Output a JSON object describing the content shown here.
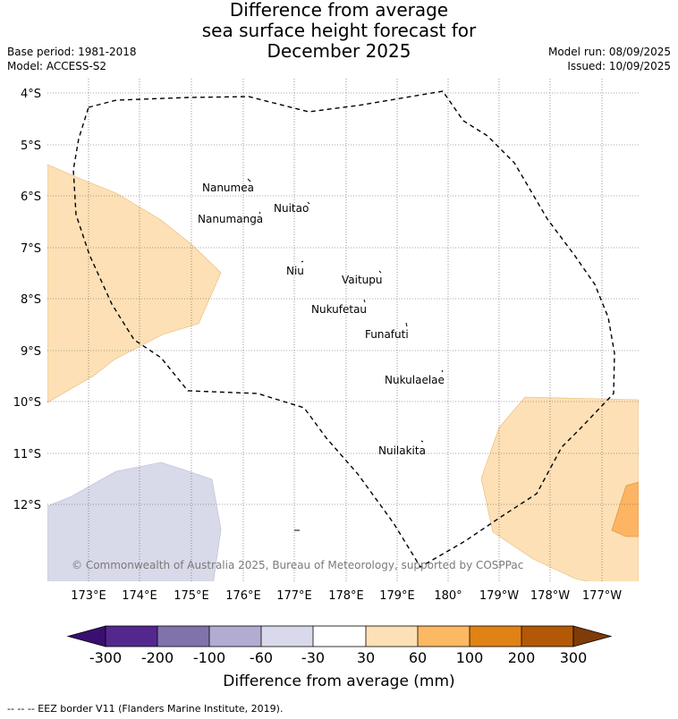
{
  "title": {
    "line1": "Difference from average",
    "line2": "sea surface height forecast for",
    "line3": "December 2025"
  },
  "meta": {
    "base_period": "Base period: 1981-2018",
    "model": "Model: ACCESS-S2",
    "model_run": "Model run: 08/09/2025",
    "issued": "Issued: 10/09/2025"
  },
  "map": {
    "lat_labels": [
      "4°S",
      "5°S",
      "6°S",
      "7°S",
      "8°S",
      "9°S",
      "10°S",
      "11°S",
      "12°S"
    ],
    "lon_labels": [
      "173°E",
      "174°E",
      "175°E",
      "176°E",
      "177°E",
      "178°E",
      "179°E",
      "180°",
      "179°W",
      "178°W",
      "177°W"
    ],
    "islands": [
      "Nanumea",
      "Nuitao",
      "Nanumanga",
      "Niu",
      "Vaitupu",
      "Nukufetau",
      "Funafuti",
      "Nukulaelae",
      "Nuilakita"
    ],
    "copyright": "© Commonwealth of Australia 2025, Bureau of Meteorology, supported by COSPPac",
    "anomaly_regions": [
      {
        "name": "west-positive-anomaly",
        "bin": "30 to 60",
        "color": "#fde0b6"
      },
      {
        "name": "southeast-positive-anomaly",
        "bin": "30 to 60",
        "color": "#fde0b6"
      },
      {
        "name": "southeast-edge-anomaly",
        "bin": "60 to 100",
        "color": "#fdb463"
      },
      {
        "name": "southwest-negative-anomaly",
        "bin": "-60 to -30",
        "color": "#d8d9e9"
      }
    ]
  },
  "colorbar": {
    "labels": [
      "-300",
      "-200",
      "-100",
      "-60",
      "-30",
      "30",
      "60",
      "100",
      "200",
      "300"
    ],
    "colors": [
      "#3b0f70",
      "#54278f",
      "#8073ac",
      "#b2abd2",
      "#d8daeb",
      "#ffffff",
      "#fee0b6",
      "#fdb863",
      "#e08214",
      "#b35806",
      "#7f3b08"
    ],
    "title": "Difference from average (mm)"
  },
  "footer": {
    "legend_text": "-- -- -- EEZ border V11 (Flanders Marine Institute, 2019)."
  }
}
